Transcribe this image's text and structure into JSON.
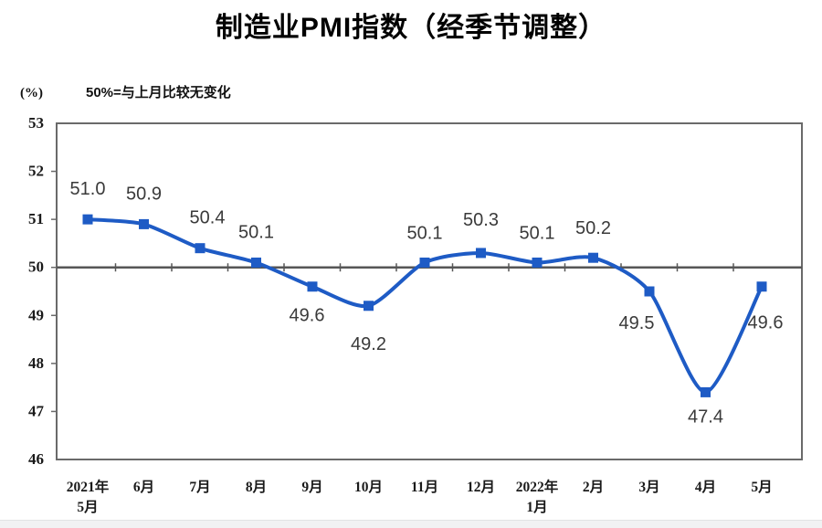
{
  "page": {
    "title": "制造业PMI指数（经季节调整）"
  },
  "chart": {
    "unit_label": "(%)",
    "note": "50%=与上月比较无变化"
  },
  "chart_data": {
    "type": "line",
    "title": "制造业PMI指数（经季节调整）",
    "note": "50%=与上月比较无变化",
    "unit": "(%)",
    "categories": [
      "2021年\n5月",
      "6月",
      "7月",
      "8月",
      "9月",
      "10月",
      "11月",
      "12月",
      "2022年\n1月",
      "2月",
      "3月",
      "4月",
      "5月"
    ],
    "values": [
      51.0,
      50.9,
      50.4,
      50.1,
      49.6,
      49.2,
      50.1,
      50.3,
      50.1,
      50.2,
      49.5,
      47.4,
      49.6
    ],
    "ylim": [
      46,
      53
    ],
    "ytick_step": 1,
    "yticks": [
      46,
      47,
      48,
      49,
      50,
      51,
      52,
      53
    ],
    "reference_value": 50,
    "grid": false,
    "legend": "none",
    "line_color": "#1E5BC5",
    "marker": "square",
    "axis_color": "#565656",
    "border_color": "#6a6a6a",
    "label_color": "#3A3A3A",
    "tick_label_color": "#1a1a1a",
    "label_dy": [
      -27,
      -27,
      -27,
      -27,
      38,
      48,
      -26,
      -30,
      -26,
      -26,
      41,
      33,
      46
    ],
    "label_dx": [
      0,
      0,
      8,
      0,
      -6,
      0,
      0,
      0,
      0,
      0,
      -14,
      0,
      4
    ]
  }
}
